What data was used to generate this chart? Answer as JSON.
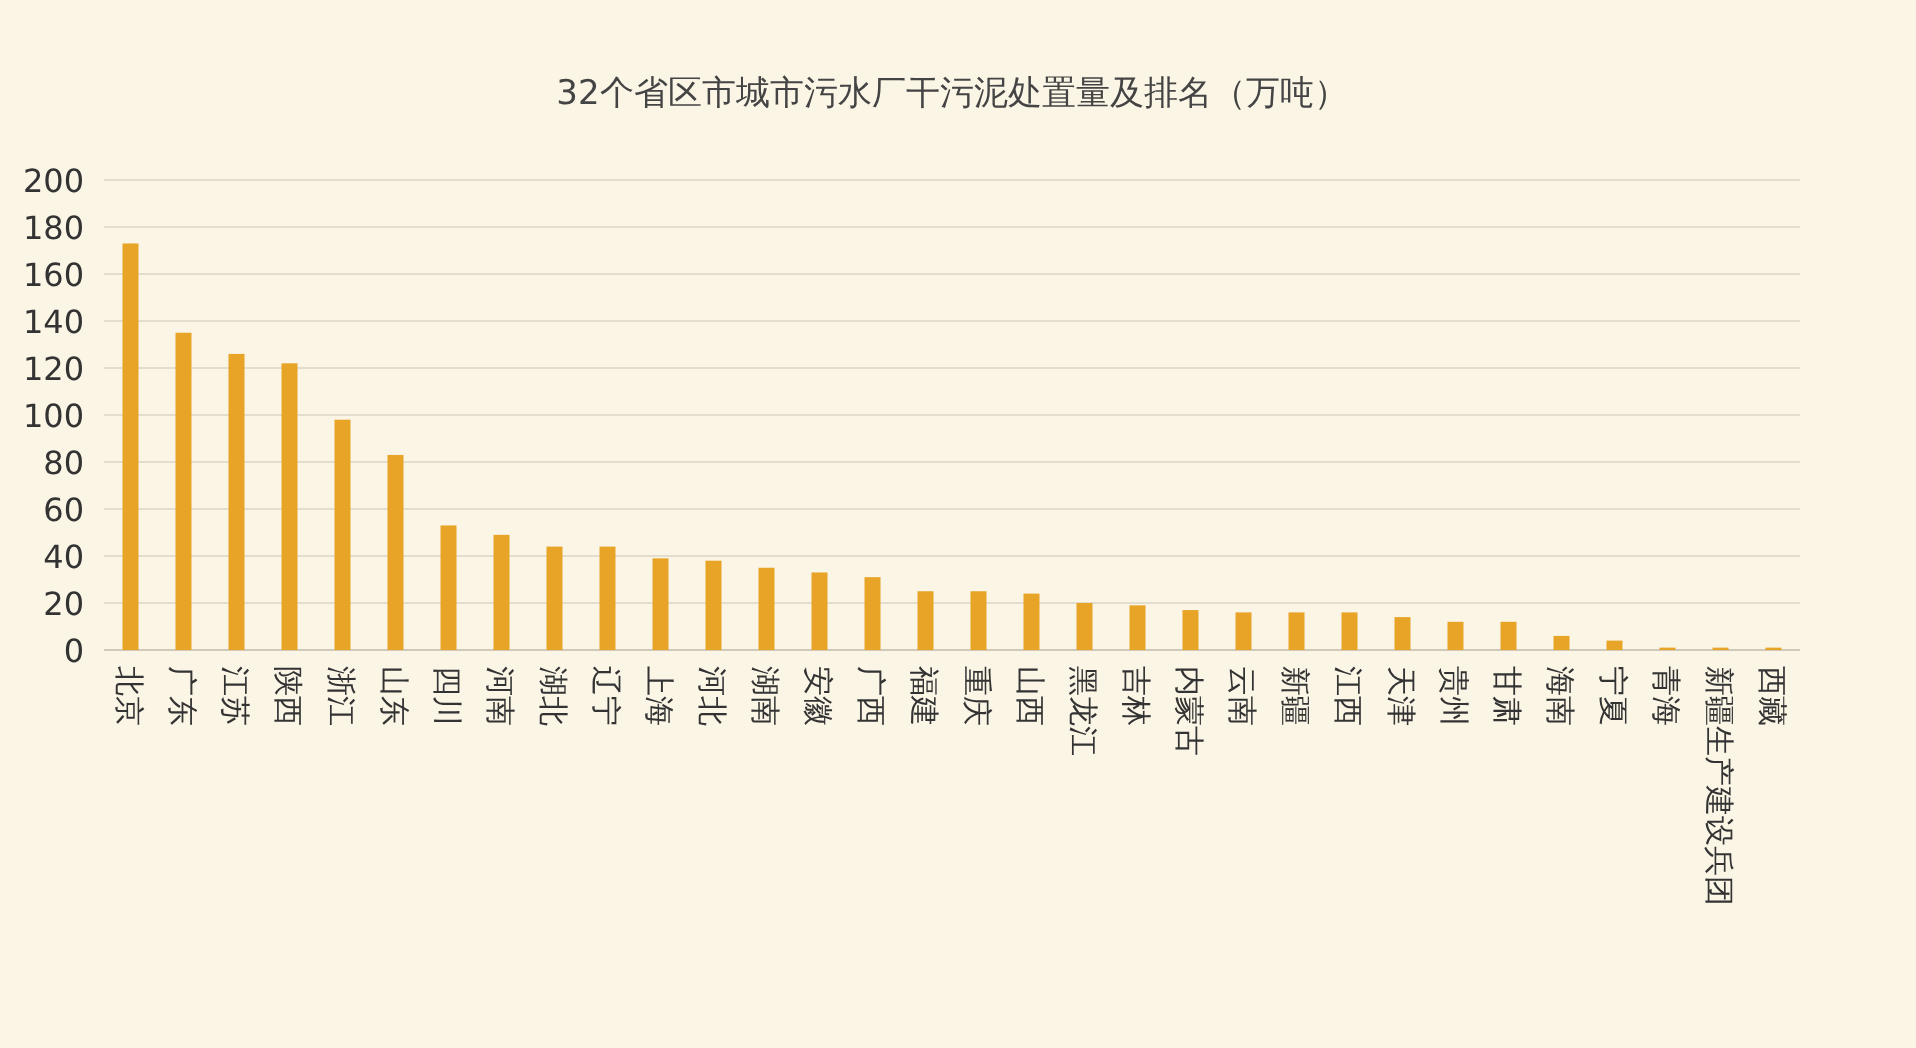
{
  "chart_data": {
    "type": "bar",
    "title": "32个省区市城市污水厂干污泥处置量及排名（万吨）",
    "categories": [
      "北京",
      "广东",
      "江苏",
      "陕西",
      "浙江",
      "山东",
      "四川",
      "河南",
      "湖北",
      "辽宁",
      "上海",
      "河北",
      "湖南",
      "安徽",
      "广西",
      "福建",
      "重庆",
      "山西",
      "黑龙江",
      "吉林",
      "内蒙古",
      "云南",
      "新疆",
      "江西",
      "天津",
      "贵州",
      "甘肃",
      "海南",
      "宁夏",
      "青海",
      "新疆生产建设兵团",
      "西藏"
    ],
    "values": [
      173,
      135,
      126,
      122,
      98,
      83,
      53,
      49,
      44,
      44,
      39,
      38,
      35,
      33,
      31,
      25,
      25,
      24,
      20,
      19,
      17,
      16,
      16,
      16,
      14,
      12,
      12,
      6,
      4,
      1,
      1,
      1
    ],
    "color": "#e8a427",
    "ylim": [
      0,
      200
    ],
    "yticks": [
      0,
      20,
      40,
      60,
      80,
      100,
      120,
      140,
      160,
      180,
      200
    ],
    "grid": "y"
  }
}
